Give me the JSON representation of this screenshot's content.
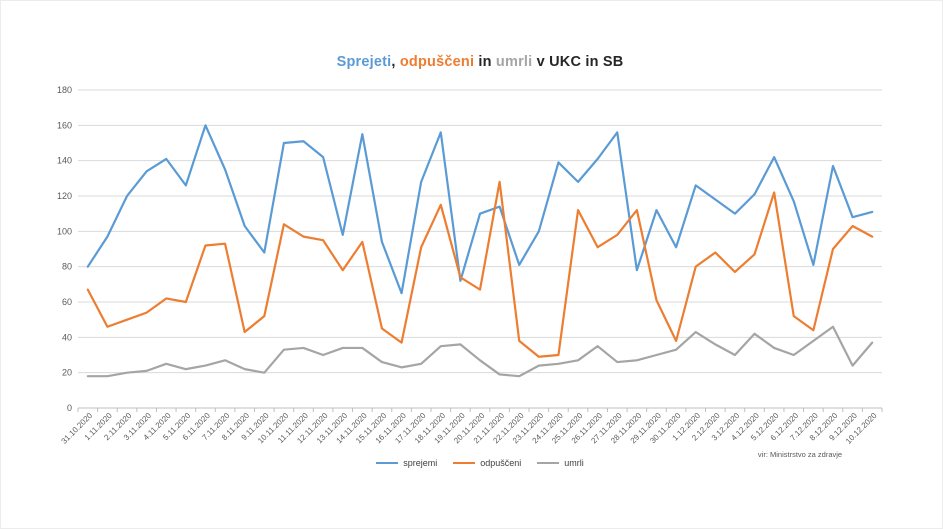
{
  "title": {
    "full": "Sprejeti, odpuščeni in umrli v UKC in SB",
    "segments": [
      {
        "text": "Sprejeti",
        "color": "#5B9BD5"
      },
      {
        "text": ", ",
        "color": "#262626"
      },
      {
        "text": "odpuščeni",
        "color": "#ED7D31"
      },
      {
        "text": " in ",
        "color": "#262626"
      },
      {
        "text": "umrli",
        "color": "#A5A5A5"
      },
      {
        "text": " v UKC in SB",
        "color": "#262626"
      }
    ]
  },
  "source_note": "vir: Ministrstvo za zdravje",
  "legend": {
    "items": [
      {
        "label": "sprejemi",
        "color": "#5B9BD5"
      },
      {
        "label": "odpuščeni",
        "color": "#ED7D31"
      },
      {
        "label": "umrli",
        "color": "#A5A5A5"
      }
    ]
  },
  "chart_data": {
    "type": "line",
    "title": "Sprejeti, odpuščeni in umrli v UKC in SB",
    "xlabel": "",
    "ylabel": "",
    "ylim": [
      0,
      180
    ],
    "y_ticks": [
      0,
      20,
      40,
      60,
      80,
      100,
      120,
      140,
      160,
      180
    ],
    "grid": true,
    "legend_position": "bottom",
    "grid_color": "#D9D9D9",
    "axis_color": "#BFBFBF",
    "tick_label_color": "#595959",
    "categories": [
      "31.10.2020",
      "1.11.2020",
      "2.11.2020",
      "3.11.2020",
      "4.11.2020",
      "5.11.2020",
      "6.11.2020",
      "7.11.2020",
      "8.11.2020",
      "9.11.2020",
      "10.11.2020",
      "11.11.2020",
      "12.11.2020",
      "13.11.2020",
      "14.11.2020",
      "15.11.2020",
      "16.11.2020",
      "17.11.2020",
      "18.11.2020",
      "19.11.2020",
      "20.11.2020",
      "21.11.2020",
      "22.11.2020",
      "23.11.2020",
      "24.11.2020",
      "25.11.2020",
      "26.11.2020",
      "27.11.2020",
      "28.11.2020",
      "29.11.2020",
      "30.11.2020",
      "1.12.2020",
      "2.12.2020",
      "3.12.2020",
      "4.12.2020",
      "5.12.2020",
      "6.12.2020",
      "7.12.2020",
      "8.12.2020",
      "9.12.2020",
      "10.12.2020"
    ],
    "series": [
      {
        "name": "sprejemi",
        "color": "#5B9BD5",
        "values": [
          80,
          97,
          120,
          134,
          141,
          126,
          160,
          135,
          103,
          88,
          150,
          151,
          142,
          98,
          155,
          94,
          65,
          128,
          156,
          72,
          110,
          114,
          81,
          100,
          139,
          128,
          141,
          156,
          78,
          112,
          91,
          126,
          118,
          110,
          121,
          142,
          117,
          81,
          137,
          108,
          111
        ]
      },
      {
        "name": "odpuščeni",
        "color": "#ED7D31",
        "values": [
          67,
          46,
          50,
          54,
          62,
          60,
          92,
          93,
          43,
          52,
          104,
          97,
          95,
          78,
          94,
          45,
          37,
          91,
          115,
          74,
          67,
          128,
          38,
          29,
          30,
          112,
          91,
          98,
          112,
          61,
          38,
          80,
          88,
          77,
          87,
          122,
          52,
          44,
          90,
          103,
          97
        ]
      },
      {
        "name": "umrli",
        "color": "#A5A5A5",
        "values": [
          18,
          18,
          20,
          21,
          25,
          22,
          24,
          27,
          22,
          20,
          33,
          34,
          30,
          34,
          34,
          26,
          23,
          25,
          35,
          36,
          27,
          19,
          18,
          24,
          25,
          27,
          35,
          26,
          27,
          30,
          33,
          43,
          36,
          30,
          42,
          34,
          30,
          38,
          46,
          24,
          37
        ]
      }
    ]
  }
}
